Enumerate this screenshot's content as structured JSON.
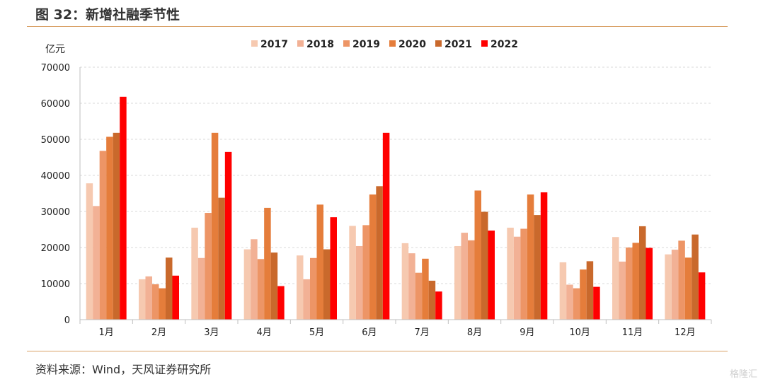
{
  "figure": {
    "title": "图 32：新增社融季节性",
    "source": "资料来源：Wind，天风证券研究所",
    "watermark": "格隆汇"
  },
  "colors": {
    "rule": "#d9a066",
    "grid": "#d9d9d9",
    "axis": "#bfbfbf"
  },
  "chart_data": {
    "type": "bar",
    "unit_label": "亿元",
    "categories": [
      "1月",
      "2月",
      "3月",
      "4月",
      "5月",
      "6月",
      "7月",
      "8月",
      "9月",
      "10月",
      "11月",
      "12月"
    ],
    "ylim": [
      0,
      70000
    ],
    "yticks": [
      0,
      10000,
      20000,
      30000,
      40000,
      50000,
      60000,
      70000
    ],
    "grid": true,
    "legend_position": "top-center",
    "series": [
      {
        "name": "2017",
        "color": "#f6c9b0",
        "values": [
          37800,
          11200,
          25500,
          19500,
          17800,
          26000,
          21200,
          20400,
          25500,
          15900,
          22900,
          18100
        ]
      },
      {
        "name": "2018",
        "color": "#f2b195",
        "values": [
          31500,
          12000,
          17100,
          22300,
          11200,
          20400,
          18400,
          24100,
          23000,
          9700,
          16100,
          19400
        ]
      },
      {
        "name": "2019",
        "color": "#ed9566",
        "values": [
          46800,
          9800,
          29600,
          16800,
          17100,
          26200,
          13000,
          22000,
          25200,
          8700,
          20000,
          21900
        ]
      },
      {
        "name": "2020",
        "color": "#e57d3b",
        "values": [
          50700,
          8700,
          51800,
          31000,
          31900,
          34700,
          16900,
          35800,
          34700,
          13900,
          21300,
          17200
        ]
      },
      {
        "name": "2021",
        "color": "#c9692c",
        "values": [
          51800,
          17200,
          33800,
          18600,
          19500,
          37000,
          10800,
          29900,
          29000,
          16200,
          25900,
          23600
        ]
      },
      {
        "name": "2022",
        "color": "#ff0000",
        "values": [
          61800,
          12200,
          46500,
          9300,
          28400,
          51800,
          7800,
          24700,
          35300,
          9100,
          19900,
          13100
        ]
      }
    ]
  }
}
